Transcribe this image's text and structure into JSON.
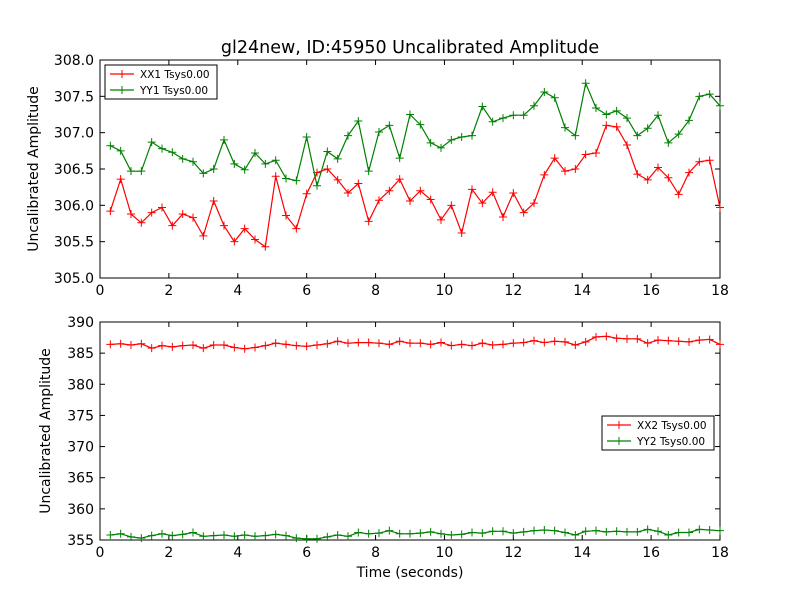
{
  "title": "gl24new, ID:45950 Uncalibrated Amplitude",
  "xlabel": "Time (seconds)",
  "chart_data": [
    {
      "type": "line",
      "ylabel": "Uncalibrated Amplitude",
      "xlim": [
        0,
        18
      ],
      "ylim": [
        305.0,
        308.0
      ],
      "xticks": [
        "0",
        "2",
        "4",
        "6",
        "8",
        "10",
        "12",
        "14",
        "16",
        "18"
      ],
      "yticks": [
        "305.0",
        "305.5",
        "306.0",
        "306.5",
        "307.0",
        "307.5",
        "308.0"
      ],
      "legend_position": "top-left",
      "grid": false,
      "x": [
        0.3,
        0.6,
        0.9,
        1.2,
        1.5,
        1.8,
        2.1,
        2.4,
        2.7,
        3.0,
        3.3,
        3.6,
        3.9,
        4.2,
        4.5,
        4.8,
        5.1,
        5.4,
        5.7,
        6.0,
        6.3,
        6.6,
        6.9,
        7.2,
        7.5,
        7.8,
        8.1,
        8.4,
        8.7,
        9.0,
        9.3,
        9.6,
        9.9,
        10.2,
        10.5,
        10.8,
        11.1,
        11.4,
        11.7,
        12.0,
        12.3,
        12.6,
        12.9,
        13.2,
        13.5,
        13.8,
        14.1,
        14.4,
        14.7,
        15.0,
        15.3,
        15.6,
        15.9,
        16.2,
        16.5,
        16.8,
        17.1,
        17.4,
        17.7,
        18.0
      ],
      "series": [
        {
          "name": "XX1 Tsys0.00",
          "color": "#ff0000",
          "values": [
            305.92,
            306.36,
            305.88,
            305.76,
            305.9,
            305.97,
            305.72,
            305.88,
            305.83,
            305.58,
            306.06,
            305.72,
            305.5,
            305.68,
            305.53,
            305.43,
            306.4,
            305.86,
            305.68,
            306.16,
            306.45,
            306.5,
            306.35,
            306.17,
            306.3,
            305.78,
            306.07,
            306.2,
            306.36,
            306.06,
            306.2,
            306.08,
            305.8,
            306.0,
            305.62,
            306.22,
            306.03,
            306.18,
            305.84,
            306.17,
            305.9,
            306.03,
            306.42,
            306.65,
            306.47,
            306.5,
            306.7,
            306.72,
            307.1,
            307.08,
            306.83,
            306.43,
            306.35,
            306.52,
            306.38,
            306.15,
            306.45,
            306.6,
            306.62,
            305.97
          ]
        },
        {
          "name": "YY1 Tsys0.00",
          "color": "#008000",
          "values": [
            306.82,
            306.75,
            306.47,
            306.47,
            306.87,
            306.78,
            306.73,
            306.64,
            306.6,
            306.44,
            306.5,
            306.9,
            306.57,
            306.49,
            306.72,
            306.57,
            306.62,
            306.37,
            306.34,
            306.94,
            306.27,
            306.74,
            306.64,
            306.96,
            307.16,
            306.47,
            307.01,
            307.1,
            306.65,
            307.25,
            307.11,
            306.86,
            306.79,
            306.9,
            306.94,
            306.96,
            307.36,
            307.15,
            307.2,
            307.24,
            307.24,
            307.37,
            307.56,
            307.48,
            307.07,
            306.96,
            307.68,
            307.34,
            307.25,
            307.3,
            307.2,
            306.96,
            307.06,
            307.24,
            306.86,
            306.98,
            307.17,
            307.5,
            307.53,
            307.37
          ]
        }
      ]
    },
    {
      "type": "line",
      "ylabel": "Uncalibrated Amplitude",
      "xlim": [
        0,
        18
      ],
      "ylim": [
        355,
        390
      ],
      "xticks": [
        "0",
        "2",
        "4",
        "6",
        "8",
        "10",
        "12",
        "14",
        "16",
        "18"
      ],
      "yticks": [
        "355",
        "360",
        "365",
        "370",
        "375",
        "380",
        "385",
        "390"
      ],
      "legend_position": "center-right",
      "grid": false,
      "x": [
        0.3,
        0.6,
        0.9,
        1.2,
        1.5,
        1.8,
        2.1,
        2.4,
        2.7,
        3.0,
        3.3,
        3.6,
        3.9,
        4.2,
        4.5,
        4.8,
        5.1,
        5.4,
        5.7,
        6.0,
        6.3,
        6.6,
        6.9,
        7.2,
        7.5,
        7.8,
        8.1,
        8.4,
        8.7,
        9.0,
        9.3,
        9.6,
        9.9,
        10.2,
        10.5,
        10.8,
        11.1,
        11.4,
        11.7,
        12.0,
        12.3,
        12.6,
        12.9,
        13.2,
        13.5,
        13.8,
        14.1,
        14.4,
        14.7,
        15.0,
        15.3,
        15.6,
        15.9,
        16.2,
        16.5,
        16.8,
        17.1,
        17.4,
        17.7,
        18.0
      ],
      "series": [
        {
          "name": "XX2 Tsys0.00",
          "color": "#ff0000",
          "values": [
            386.4,
            386.5,
            386.3,
            386.5,
            385.8,
            386.2,
            386.0,
            386.2,
            386.3,
            385.8,
            386.3,
            386.3,
            385.9,
            385.7,
            385.9,
            386.2,
            386.6,
            386.4,
            386.2,
            386.1,
            386.3,
            386.5,
            386.9,
            386.6,
            386.7,
            386.7,
            386.6,
            386.4,
            386.9,
            386.6,
            386.6,
            386.4,
            386.7,
            386.2,
            386.4,
            386.2,
            386.6,
            386.3,
            386.4,
            386.6,
            386.7,
            387.0,
            386.7,
            386.9,
            386.8,
            386.3,
            386.8,
            387.6,
            387.7,
            387.4,
            387.3,
            387.3,
            386.6,
            387.1,
            387.0,
            386.9,
            386.8,
            387.1,
            387.2,
            386.4
          ]
        },
        {
          "name": "YY2 Tsys0.00",
          "color": "#008000",
          "values": [
            355.8,
            356.0,
            355.5,
            355.3,
            355.7,
            356.0,
            355.7,
            355.9,
            356.2,
            355.6,
            355.7,
            355.8,
            355.6,
            355.8,
            355.6,
            355.7,
            355.9,
            355.7,
            355.3,
            355.2,
            355.2,
            355.5,
            355.8,
            355.6,
            356.2,
            356.0,
            356.1,
            356.5,
            356.0,
            356.0,
            356.1,
            356.3,
            356.0,
            355.8,
            355.9,
            356.2,
            356.1,
            356.4,
            356.4,
            356.1,
            356.3,
            356.5,
            356.6,
            356.5,
            356.2,
            355.8,
            356.4,
            356.5,
            356.3,
            356.4,
            356.3,
            356.3,
            356.7,
            356.4,
            355.8,
            356.2,
            356.2,
            356.7,
            356.6,
            356.5
          ]
        }
      ]
    }
  ]
}
